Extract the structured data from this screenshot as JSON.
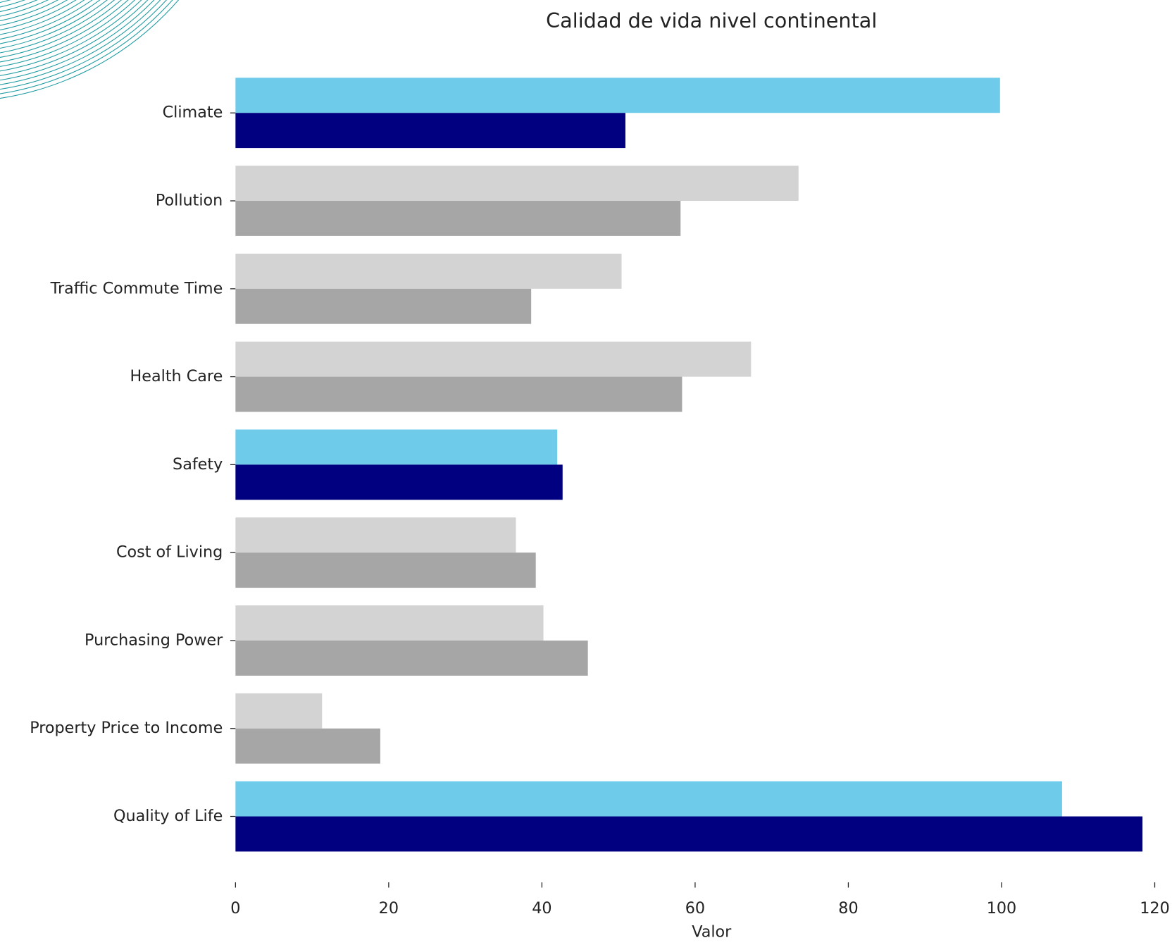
{
  "chart_data": {
    "type": "barh",
    "title": "Calidad de vida nivel continental",
    "xlabel": "Valor",
    "categories": [
      "Climate",
      "Pollution",
      "Traffic Commute Time",
      "Health Care",
      "Safety",
      "Cost of Living",
      "Purchasing Power",
      "Property Price to Income",
      "Quality of Life"
    ],
    "series": [
      {
        "colors": [
          "#6ecbea",
          "#d3d3d3",
          "#d3d3d3",
          "#d3d3d3",
          "#6ecbea",
          "#d3d3d3",
          "#d3d3d3",
          "#d3d3d3",
          "#6ecbea"
        ],
        "values": [
          99.8,
          73.5,
          50.4,
          67.3,
          42.0,
          36.6,
          40.2,
          11.3,
          107.9
        ]
      },
      {
        "colors": [
          "#000080",
          "#a6a6a6",
          "#a6a6a6",
          "#a6a6a6",
          "#000080",
          "#a6a6a6",
          "#a6a6a6",
          "#a6a6a6",
          "#000080"
        ],
        "values": [
          50.9,
          58.1,
          38.6,
          58.3,
          42.7,
          39.2,
          46.0,
          18.9,
          118.4
        ]
      }
    ],
    "xlim": [
      0,
      120
    ],
    "xticks": [
      0,
      20,
      40,
      60,
      80,
      100,
      120
    ]
  }
}
